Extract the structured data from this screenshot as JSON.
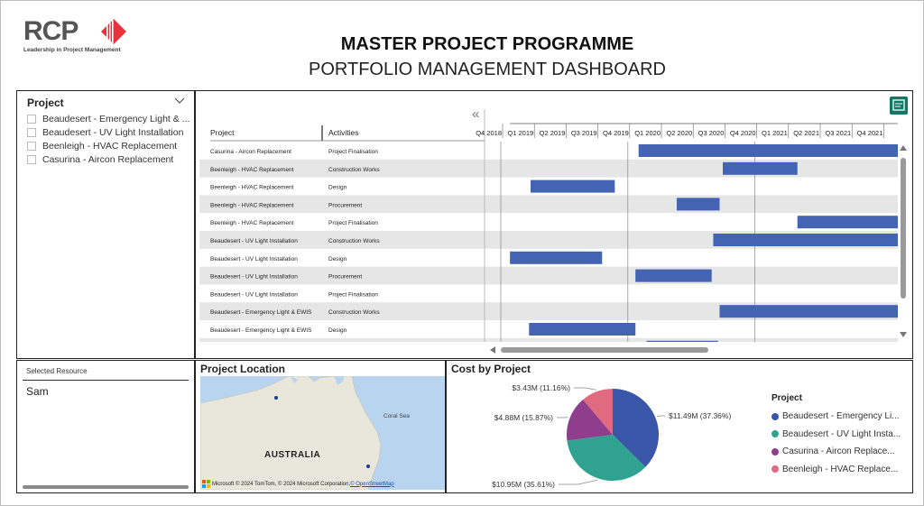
{
  "header": {
    "logo_text": "RCP",
    "logo_tagline": "Leadership in Project Management",
    "title": "MASTER PROJECT PROGRAMME",
    "subtitle": "PORTFOLIO MANAGEMENT DASHBOARD"
  },
  "colors": {
    "bar": "#4363b3",
    "row_band": "#e6e6e6",
    "logo_red": "#e5323b",
    "map_water": "#b9d4ef",
    "map_land": "#e9e6dc"
  },
  "slicer": {
    "title": "Project",
    "items": [
      "Beaudesert - Emergency Light & ...",
      "Beaudesert - UV Light Installation",
      "Beenleigh - HVAC Replacement",
      "Casurina - Aircon Replacement"
    ]
  },
  "resource": {
    "label": "Selected Resource",
    "value": "Sam"
  },
  "gantt": {
    "collapse_glyph": "«",
    "col_project": "Project",
    "col_activities": "Activities",
    "quarters": [
      "Q4 2018",
      "Q1 2019",
      "Q2 2019",
      "Q3 2019",
      "Q4 2019",
      "Q1 2020",
      "Q2 2020",
      "Q3 2020",
      "Q4 2020",
      "Q1 2021",
      "Q2 2021",
      "Q3 2021",
      "Q4 2021"
    ],
    "rows": [
      {
        "project": "Casurina - Aircon Replacement",
        "activity": "Project Finalisation",
        "start": 4.85,
        "end": 13.7
      },
      {
        "project": "Beenleigh - HVAC Replacement",
        "activity": "Construction Works",
        "start": 7.5,
        "end": 9.85
      },
      {
        "project": "Beenleigh - HVAC Replacement",
        "activity": "Design",
        "start": 1.45,
        "end": 4.1
      },
      {
        "project": "Beenleigh - HVAC Replacement",
        "activity": "Procurement",
        "start": 6.05,
        "end": 7.4
      },
      {
        "project": "Beenleigh - HVAC Replacement",
        "activity": "Project Finalisation",
        "start": 9.85,
        "end": 13.7
      },
      {
        "project": "Beaudesert - UV Light Installation",
        "activity": "Construction Works",
        "start": 7.2,
        "end": 13.7
      },
      {
        "project": "Beaudesert - UV Light Installation",
        "activity": "Design",
        "start": 0.8,
        "end": 3.7
      },
      {
        "project": "Beaudesert - UV Light Installation",
        "activity": "Procurement",
        "start": 4.75,
        "end": 7.15
      },
      {
        "project": "Beaudesert - UV Light Installation",
        "activity": "Project Finalisation",
        "start": null,
        "end": null
      },
      {
        "project": "Beaudesert - Emergency Light & EWIS",
        "activity": "Construction Works",
        "start": 7.4,
        "end": 13.7
      },
      {
        "project": "Beaudesert - Emergency Light & EWIS",
        "activity": "Design",
        "start": 1.4,
        "end": 4.75
      },
      {
        "project": "",
        "activity": "",
        "start": 5.1,
        "end": 7.35
      }
    ]
  },
  "map": {
    "title": "Project Location",
    "label_country": "AUSTRALIA",
    "label_sea": "Coral Sea",
    "credit_brand": "Microsoft",
    "credit_text": "© 2024 TomTom, © 2024 Microsoft Corporation, ",
    "credit_link": "© OpenStreetMap",
    "pin_color": "#1f3a8a"
  },
  "chart_data": {
    "type": "pie",
    "title": "Cost by Project",
    "legend_title": "Project",
    "legend_position": "right",
    "series": [
      {
        "name": "Beaudesert - Emergency Li...",
        "value": 11.49,
        "label": "$11.49M (37.36%)",
        "color": "#3a56a8"
      },
      {
        "name": "Beaudesert - UV Light Insta...",
        "value": 10.95,
        "label": "$10.95M (35.61%)",
        "color": "#2fa38f"
      },
      {
        "name": "Casurina - Aircon Replace...",
        "value": 4.88,
        "label": "$4.88M (15.87%)",
        "color": "#8e3e8c"
      },
      {
        "name": "Beenleigh - HVAC Replace...",
        "value": 3.43,
        "label": "$3.43M (11.16%)",
        "color": "#e06b80"
      }
    ]
  }
}
